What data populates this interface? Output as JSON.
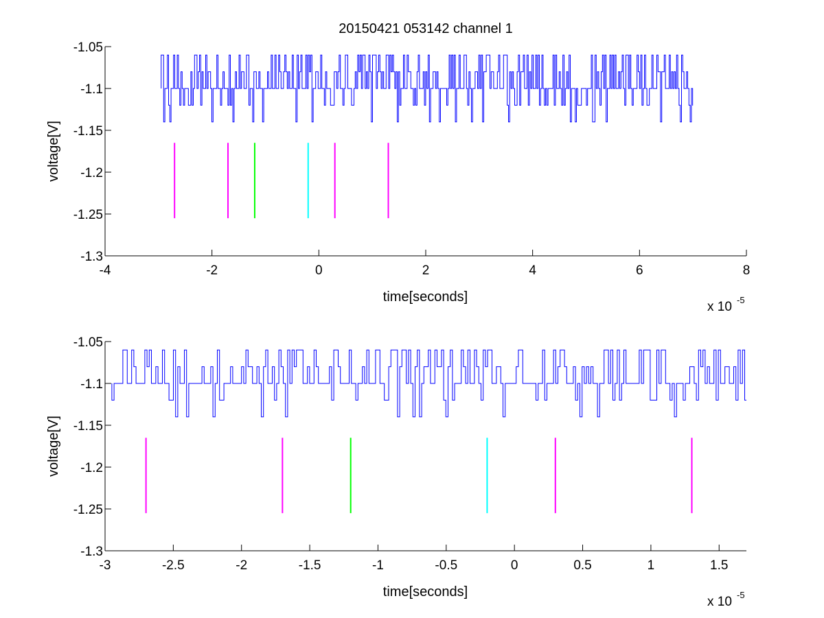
{
  "figure": {
    "title": "20150421 053142 channel 1"
  },
  "chart_data": [
    {
      "type": "line",
      "title": "20150421 053142 channel 1",
      "xlabel": "time[seconds]",
      "ylabel": "voltage[V]",
      "x_exponent_label": "x 10",
      "x_exponent_power": "-5",
      "xlim": [
        -4e-05,
        8e-05
      ],
      "ylim": [
        -1.3,
        -1.05
      ],
      "x_ticks": [
        -4e-05,
        -2e-05,
        0,
        2e-05,
        4e-05,
        6e-05,
        8e-05
      ],
      "x_tick_labels": [
        "-4",
        "-2",
        "0",
        "2",
        "4",
        "6",
        "8"
      ],
      "y_ticks": [
        -1.05,
        -1.1,
        -1.15,
        -1.2,
        -1.25,
        -1.3
      ],
      "y_tick_labels": [
        "-1.05",
        "-1.1",
        "-1.15",
        "-1.2",
        "-1.25",
        "-1.3"
      ],
      "grid": false,
      "signal": {
        "color": "#0000ff",
        "x_range": [
          -2.95e-05,
          7e-05
        ],
        "levels": [
          -1.06,
          -1.08,
          -1.1,
          -1.12,
          -1.14
        ],
        "baseline": -1.1
      },
      "markers": [
        {
          "x": -2.7e-05,
          "color": "#ff00ff",
          "y_range": [
            -1.255,
            -1.165
          ]
        },
        {
          "x": -1.7e-05,
          "color": "#ff00ff",
          "y_range": [
            -1.255,
            -1.165
          ]
        },
        {
          "x": -1.2e-05,
          "color": "#00ff00",
          "y_range": [
            -1.255,
            -1.165
          ]
        },
        {
          "x": -2e-06,
          "color": "#00ffff",
          "y_range": [
            -1.255,
            -1.165
          ]
        },
        {
          "x": 3e-06,
          "color": "#ff00ff",
          "y_range": [
            -1.255,
            -1.165
          ]
        },
        {
          "x": 1.3e-05,
          "color": "#ff00ff",
          "y_range": [
            -1.255,
            -1.165
          ]
        }
      ]
    },
    {
      "type": "line",
      "xlabel": "time[seconds]",
      "ylabel": "voltage[V]",
      "x_exponent_label": "x 10",
      "x_exponent_power": "-5",
      "xlim": [
        -3e-05,
        1.7e-05
      ],
      "ylim": [
        -1.3,
        -1.05
      ],
      "x_ticks": [
        -3e-05,
        -2.5e-05,
        -2e-05,
        -1.5e-05,
        -1e-05,
        -5e-06,
        0,
        5e-06,
        1e-05,
        1.5e-05
      ],
      "x_tick_labels": [
        "-3",
        "-2.5",
        "-2",
        "-1.5",
        "-1",
        "-0.5",
        "0",
        "0.5",
        "1",
        "1.5"
      ],
      "y_ticks": [
        -1.05,
        -1.1,
        -1.15,
        -1.2,
        -1.25,
        -1.3
      ],
      "y_tick_labels": [
        "-1.05",
        "-1.1",
        "-1.15",
        "-1.2",
        "-1.25",
        "-1.3"
      ],
      "grid": false,
      "signal": {
        "color": "#0000ff",
        "x_range": [
          -2.95e-05,
          1.7e-05
        ],
        "levels": [
          -1.06,
          -1.08,
          -1.1,
          -1.12,
          -1.14
        ],
        "baseline": -1.1
      },
      "markers": [
        {
          "x": -2.7e-05,
          "color": "#ff00ff",
          "y_range": [
            -1.255,
            -1.165
          ]
        },
        {
          "x": -1.7e-05,
          "color": "#ff00ff",
          "y_range": [
            -1.255,
            -1.165
          ]
        },
        {
          "x": -1.2e-05,
          "color": "#00ff00",
          "y_range": [
            -1.255,
            -1.165
          ]
        },
        {
          "x": -2e-06,
          "color": "#00ffff",
          "y_range": [
            -1.255,
            -1.165
          ]
        },
        {
          "x": 3e-06,
          "color": "#ff00ff",
          "y_range": [
            -1.255,
            -1.165
          ]
        },
        {
          "x": 1.3e-05,
          "color": "#ff00ff",
          "y_range": [
            -1.255,
            -1.165
          ]
        }
      ]
    }
  ]
}
